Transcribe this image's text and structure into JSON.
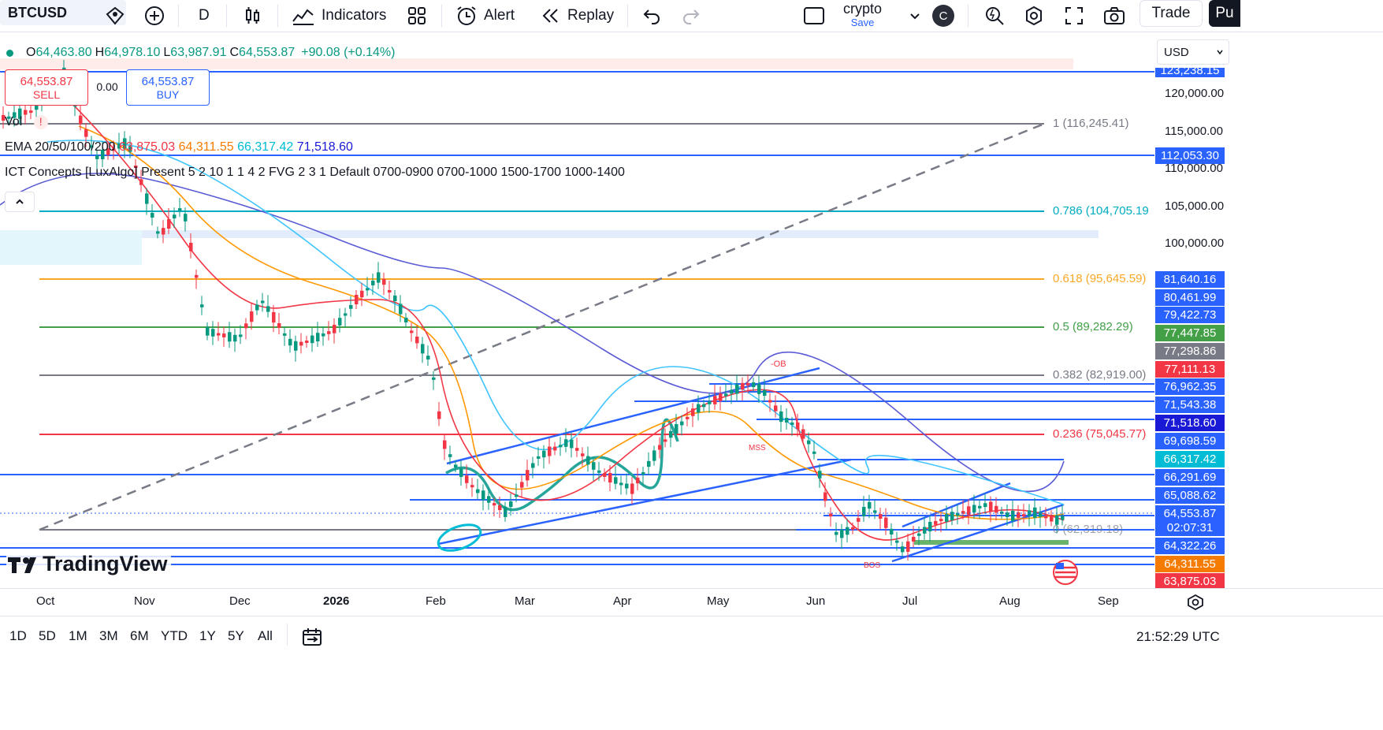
{
  "toolbar": {
    "symbol": "BTCUSD",
    "interval": "D",
    "indicators": "Indicators",
    "alert": "Alert",
    "replay": "Replay",
    "layout_name": "crypto",
    "layout_sub": "Save",
    "avatar_letter": "C",
    "trade": "Trade",
    "publish": "Pu"
  },
  "legend": {
    "o_label": "O",
    "o": "64,463.80",
    "h_label": "H",
    "h": "64,978.10",
    "l_label": "L",
    "l": "63,987.91",
    "c_label": "C",
    "c": "64,553.87",
    "change": "+90.08 (+0.14%)",
    "vol": "Vol",
    "ema_label": "EMA 20/50/100/200",
    "ema20": "63,875.03",
    "ema50": "64,311.55",
    "ema100": "66,317.42",
    "ema200": "71,518.60",
    "ict": "ICT Concepts [LuxAlgo] Present 5 2 10 1 1 4 2 FVG 2 3 1 Default 0700-0900 0700-1000 1500-1700 1000-1400"
  },
  "trade_panel": {
    "sell_price": "64,553.87",
    "sell": "SELL",
    "spread": "0.00",
    "buy_price": "64,553.87",
    "buy": "BUY"
  },
  "currency": "USD",
  "y_ticks": [
    "120,000.00",
    "115,000.00",
    "110,000.00",
    "105,000.00",
    "100,000.00"
  ],
  "price_labels": [
    {
      "v": "123,238.15",
      "bg": "#2962ff"
    },
    {
      "v": "112,053.30",
      "bg": "#2962ff"
    },
    {
      "v": "81,640.16",
      "bg": "#2962ff"
    },
    {
      "v": "80,461.99",
      "bg": "#2962ff"
    },
    {
      "v": "79,422.73",
      "bg": "#2962ff"
    },
    {
      "v": "77,447.85",
      "bg": "#43a047"
    },
    {
      "v": "77,298.86",
      "bg": "#787b86"
    },
    {
      "v": "77,111.13",
      "bg": "#f23645"
    },
    {
      "v": "76,962.35",
      "bg": "#2962ff"
    },
    {
      "v": "71,543.38",
      "bg": "#2962ff"
    },
    {
      "v": "71,518.60",
      "bg": "#1a1ad6"
    },
    {
      "v": "69,698.59",
      "bg": "#2962ff"
    },
    {
      "v": "66,317.42",
      "bg": "#00bcd4"
    },
    {
      "v": "66,291.69",
      "bg": "#2962ff"
    },
    {
      "v": "65,088.62",
      "bg": "#2962ff"
    },
    {
      "v": "64,553.87",
      "bg": "#2962ff"
    },
    {
      "v": "02:07:31",
      "bg": "#2962ff"
    },
    {
      "v": "64,322.26",
      "bg": "#2962ff"
    },
    {
      "v": "64,311.55",
      "bg": "#f57c00"
    },
    {
      "v": "63,875.03",
      "bg": "#f23645"
    }
  ],
  "fib": [
    {
      "t": "1 (116,245.41)",
      "c": "#787b86"
    },
    {
      "t": "0.786 (104,705.19",
      "c": "#00acc1"
    },
    {
      "t": "0.618 (95,645.59)",
      "c": "#f9a825"
    },
    {
      "t": "0.5 (89,282.29)",
      "c": "#43a047"
    },
    {
      "t": "0.382 (82,919.00)",
      "c": "#787b86"
    },
    {
      "t": "0.236 (75,045.77)",
      "c": "#f23645"
    },
    {
      "t": "0 (62,319.18)",
      "c": "#787b86"
    }
  ],
  "annotations": {
    "ob": "-OB",
    "mss": "MSS",
    "bos": "BOS"
  },
  "x_labels": [
    "Oct",
    "Nov",
    "Dec",
    "2026",
    "Feb",
    "Mar",
    "Apr",
    "May",
    "Jun",
    "Jul",
    "Aug",
    "Sep"
  ],
  "ranges": [
    "1D",
    "5D",
    "1M",
    "3M",
    "6M",
    "YTD",
    "1Y",
    "5Y",
    "All"
  ],
  "clock": "21:52:29 UTC",
  "watermark": "TradingView",
  "chart_data": {
    "type": "candlestick",
    "symbol": "BTCUSD",
    "interval": "D",
    "last": 64553.87,
    "open": 64463.8,
    "high": 64978.1,
    "low": 63987.91,
    "close": 64553.87,
    "ema": {
      "20": 63875.03,
      "50": 64311.55,
      "100": 66317.42,
      "200": 71518.6
    },
    "fib_levels": [
      116245.41,
      104705.19,
      95645.59,
      89282.29,
      82919.0,
      75045.77,
      62319.18
    ]
  }
}
